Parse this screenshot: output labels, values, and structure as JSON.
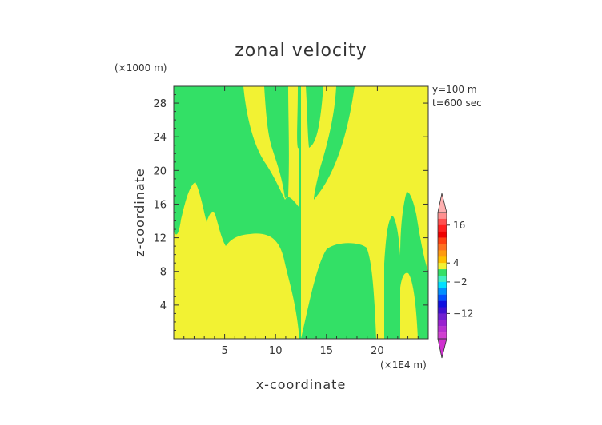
{
  "chart_data": {
    "type": "heatmap",
    "title": "zonal velocity",
    "xlabel": "x-coordinate",
    "ylabel": "z-coordinate",
    "x_unit": "(×1E4 m)",
    "y_unit": "(×1000 m)",
    "xlim": [
      0,
      25
    ],
    "ylim": [
      0,
      30
    ],
    "xticks": [
      5,
      10,
      15,
      20
    ],
    "yticks": [
      4,
      8,
      12,
      16,
      20,
      24,
      28
    ],
    "annotations": [
      "y=100 m",
      "t=600 sec"
    ],
    "colorbar": {
      "ticks": [
        {
          "value": 16,
          "label": "16"
        },
        {
          "value": 4,
          "label": "4"
        },
        {
          "value": -2,
          "label": "−2"
        },
        {
          "value": -12,
          "label": "−12"
        }
      ]
    },
    "regions": [
      {
        "name": "green",
        "color": "#33e066",
        "level": "0 to 2"
      },
      {
        "name": "yellow",
        "color": "#f2f233",
        "level": "2 to 4"
      }
    ]
  }
}
